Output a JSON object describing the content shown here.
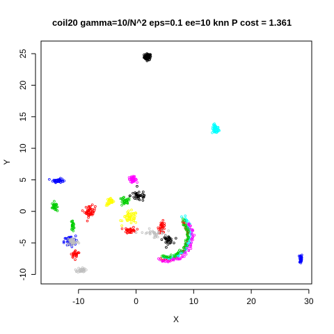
{
  "chart_data": {
    "type": "scatter",
    "title": "coil20 gamma=10/N^2 eps=0.1 ee=10 knn P cost = 1.361",
    "xlabel": "X",
    "ylabel": "Y",
    "xlim": [
      -16.5,
      30.5
    ],
    "ylim": [
      -11.5,
      27.0
    ],
    "x_ticks": [
      -10,
      0,
      10,
      20,
      30
    ],
    "y_ticks": [
      -10,
      -5,
      0,
      5,
      10,
      15,
      20,
      25
    ],
    "grid": false,
    "legend": "none",
    "marker": "open-circle",
    "clusters": [
      {
        "color": "#000000",
        "shape": "blob",
        "center": [
          2.0,
          24.5
        ],
        "spread": [
          0.6,
          0.5
        ],
        "n": 70
      },
      {
        "color": "#00ffff",
        "shape": "blob",
        "center": [
          13.8,
          13.0
        ],
        "spread": [
          0.6,
          0.7
        ],
        "n": 45
      },
      {
        "color": "#0000ff",
        "shape": "blob",
        "center": [
          28.6,
          -7.5
        ],
        "spread": [
          0.25,
          0.8
        ],
        "n": 40
      },
      {
        "color": "#0000ff",
        "shape": "blob",
        "center": [
          -13.5,
          4.9
        ],
        "spread": [
          0.9,
          0.3
        ],
        "n": 40
      },
      {
        "color": "#00cd00",
        "shape": "blob",
        "center": [
          -14.2,
          0.8
        ],
        "spread": [
          0.4,
          0.7
        ],
        "n": 35
      },
      {
        "color": "#ff0000",
        "shape": "blob",
        "center": [
          -8.0,
          0.0
        ],
        "spread": [
          0.9,
          0.9
        ],
        "n": 45
      },
      {
        "color": "#ff00ff",
        "shape": "blob",
        "center": [
          -0.6,
          5.1
        ],
        "spread": [
          0.7,
          0.4
        ],
        "n": 40
      },
      {
        "color": "#ffff00",
        "shape": "blob",
        "center": [
          -4.5,
          1.5
        ],
        "spread": [
          0.7,
          0.6
        ],
        "n": 30
      },
      {
        "color": "#000000",
        "shape": "blob",
        "center": [
          0.5,
          2.5
        ],
        "spread": [
          1.5,
          0.9
        ],
        "n": 35
      },
      {
        "color": "#00cd00",
        "shape": "blob",
        "center": [
          -2.0,
          1.5
        ],
        "spread": [
          1.0,
          0.7
        ],
        "n": 25
      },
      {
        "color": "#ffff00",
        "shape": "blob",
        "center": [
          -1.0,
          -1.0
        ],
        "spread": [
          1.3,
          1.0
        ],
        "n": 45
      },
      {
        "color": "#ff0000",
        "shape": "blob",
        "center": [
          -1.0,
          -3.0
        ],
        "spread": [
          1.0,
          0.5
        ],
        "n": 30
      },
      {
        "color": "#ff0000",
        "shape": "blob",
        "center": [
          4.5,
          -2.5
        ],
        "spread": [
          0.6,
          0.9
        ],
        "n": 35
      },
      {
        "color": "#000000",
        "shape": "blob",
        "center": [
          5.5,
          -4.5
        ],
        "spread": [
          0.9,
          0.6
        ],
        "n": 30
      },
      {
        "color": "#00cd00",
        "shape": "blob",
        "center": [
          -11.0,
          -2.2
        ],
        "spread": [
          0.3,
          0.8
        ],
        "n": 20
      },
      {
        "color": "#0000ff",
        "shape": "blob",
        "center": [
          -11.5,
          -4.8
        ],
        "spread": [
          1.0,
          0.9
        ],
        "n": 50
      },
      {
        "color": "#bebebe",
        "shape": "blob",
        "center": [
          -11.0,
          -4.8
        ],
        "spread": [
          1.0,
          0.7
        ],
        "n": 40
      },
      {
        "color": "#ff0000",
        "shape": "blob",
        "center": [
          -10.5,
          -6.8
        ],
        "spread": [
          0.8,
          0.6
        ],
        "n": 25
      },
      {
        "color": "#bebebe",
        "shape": "blob",
        "center": [
          -9.5,
          -9.3
        ],
        "spread": [
          0.7,
          0.4
        ],
        "n": 30
      },
      {
        "color": "#ff0000",
        "shape": "arc",
        "center": [
          5.0,
          -4.0
        ],
        "radius": [
          4.0,
          3.6
        ],
        "angle": [
          -100,
          40
        ],
        "n": 60
      },
      {
        "color": "#00ffff",
        "shape": "arc",
        "center": [
          5.4,
          -3.6
        ],
        "radius": [
          4.0,
          3.8
        ],
        "angle": [
          -100,
          45
        ],
        "n": 70
      },
      {
        "color": "#ff00ff",
        "shape": "arc",
        "center": [
          5.5,
          -4.0
        ],
        "radius": [
          4.3,
          3.9
        ],
        "angle": [
          -110,
          35
        ],
        "n": 60
      },
      {
        "color": "#00cd00",
        "shape": "arc",
        "center": [
          5.2,
          -3.7
        ],
        "radius": [
          3.8,
          3.5
        ],
        "angle": [
          -100,
          40
        ],
        "n": 55
      },
      {
        "color": "#bebebe",
        "shape": "blob",
        "center": [
          3.0,
          -3.5
        ],
        "spread": [
          2.0,
          0.7
        ],
        "n": 30
      }
    ]
  }
}
